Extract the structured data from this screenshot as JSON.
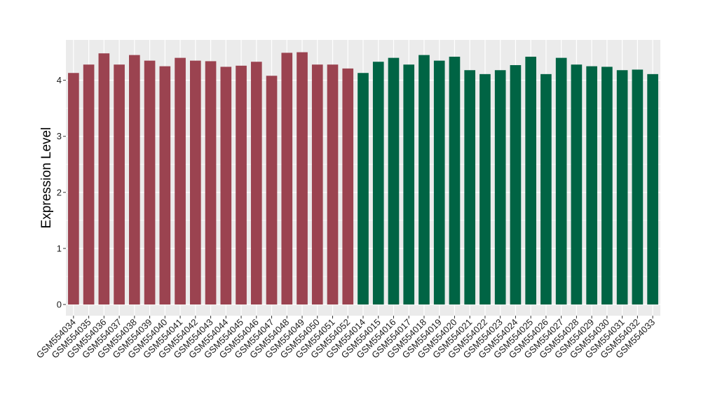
{
  "chart_data": {
    "type": "bar",
    "ylabel": "Expression Level",
    "xlabel": "",
    "ylim": [
      -0.2,
      4.72
    ],
    "yticks": [
      0,
      1,
      2,
      3,
      4
    ],
    "grid": true,
    "colors": {
      "group1": "#9b4350",
      "group2": "#006444",
      "panel_background": "#ebebeb",
      "grid_major": "#ffffff"
    },
    "categories": [
      "GSM554034",
      "GSM554035",
      "GSM554036",
      "GSM554037",
      "GSM554038",
      "GSM554039",
      "GSM554040",
      "GSM554041",
      "GSM554042",
      "GSM554043",
      "GSM554044",
      "GSM554045",
      "GSM554046",
      "GSM554047",
      "GSM554048",
      "GSM554049",
      "GSM554050",
      "GSM554051",
      "GSM554052",
      "GSM554014",
      "GSM554015",
      "GSM554016",
      "GSM554017",
      "GSM554018",
      "GSM554019",
      "GSM554020",
      "GSM554021",
      "GSM554022",
      "GSM554023",
      "GSM554024",
      "GSM554025",
      "GSM554026",
      "GSM554027",
      "GSM554028",
      "GSM554029",
      "GSM554030",
      "GSM554031",
      "GSM554032",
      "GSM554033"
    ],
    "values": [
      4.13,
      4.28,
      4.48,
      4.28,
      4.45,
      4.35,
      4.25,
      4.4,
      4.35,
      4.34,
      4.24,
      4.26,
      4.33,
      4.08,
      4.49,
      4.5,
      4.28,
      4.28,
      4.21,
      4.13,
      4.33,
      4.4,
      4.28,
      4.45,
      4.35,
      4.42,
      4.18,
      4.11,
      4.18,
      4.27,
      4.42,
      4.11,
      4.4,
      4.28,
      4.25,
      4.24,
      4.18,
      4.19,
      4.11
    ],
    "groups": [
      1,
      1,
      1,
      1,
      1,
      1,
      1,
      1,
      1,
      1,
      1,
      1,
      1,
      1,
      1,
      1,
      1,
      1,
      1,
      2,
      2,
      2,
      2,
      2,
      2,
      2,
      2,
      2,
      2,
      2,
      2,
      2,
      2,
      2,
      2,
      2,
      2,
      2,
      2
    ]
  }
}
